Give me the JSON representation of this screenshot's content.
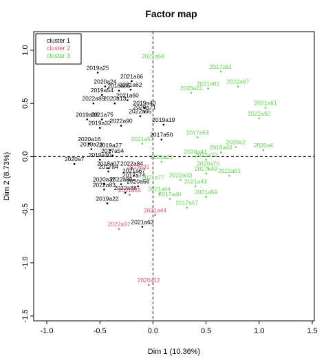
{
  "chart_data": {
    "type": "scatter",
    "title": "Factor map",
    "xlabel": "Dim 1 (10.36%)",
    "ylabel": "Dim 2 (8.73%)",
    "xlim": [
      -1.0,
      1.5
    ],
    "ylim": [
      -1.5,
      1.0
    ],
    "xticks": [
      "-1.0",
      "-0.5",
      "0.0",
      "0.5",
      "1.0",
      "1.5"
    ],
    "yticks": [
      "-1.5",
      "-1.0",
      "-0.5",
      "0.0",
      "0.5",
      "1.0"
    ],
    "legend_position": "top-left",
    "grid": false,
    "colors": {
      "cluster 1": "#000000",
      "cluster 2": "#DF536B",
      "cluster 3": "#61D04F"
    },
    "series": [
      {
        "name": "cluster 1",
        "points": [
          {
            "label": "2019a25",
            "x": -0.52,
            "y": 0.79
          },
          {
            "label": "2021a66",
            "x": -0.2,
            "y": 0.71
          },
          {
            "label": "2020a24",
            "x": -0.45,
            "y": 0.66
          },
          {
            "label": "2021a62",
            "x": -0.21,
            "y": 0.63
          },
          {
            "label": "2018a05",
            "x": -0.32,
            "y": 0.62
          },
          {
            "label": "2019a54",
            "x": -0.48,
            "y": 0.58
          },
          {
            "label": "2021a60",
            "x": -0.24,
            "y": 0.53
          },
          {
            "label": "2022a89",
            "x": -0.56,
            "y": 0.5
          },
          {
            "label": "2020a13",
            "x": -0.36,
            "y": 0.5
          },
          {
            "label": "2019a40",
            "x": -0.08,
            "y": 0.46
          },
          {
            "label": "2020a71",
            "x": -0.08,
            "y": 0.42
          },
          {
            "label": "2022a95",
            "x": -0.12,
            "y": 0.38
          },
          {
            "label": "2019a26",
            "x": -0.62,
            "y": 0.35
          },
          {
            "label": "2021a75",
            "x": -0.48,
            "y": 0.35
          },
          {
            "label": "2019a32",
            "x": -0.5,
            "y": 0.27
          },
          {
            "label": "2022a90",
            "x": -0.3,
            "y": 0.29
          },
          {
            "label": "2019a19",
            "x": 0.1,
            "y": 0.3
          },
          {
            "label": "2017a50",
            "x": 0.08,
            "y": 0.16
          },
          {
            "label": "2020a16",
            "x": -0.6,
            "y": 0.12
          },
          {
            "label": "2019a23",
            "x": -0.58,
            "y": 0.07
          },
          {
            "label": "2019a27",
            "x": -0.4,
            "y": 0.06
          },
          {
            "label": "2017a54",
            "x": -0.38,
            "y": 0.01
          },
          {
            "label": "2019a30",
            "x": -0.5,
            "y": -0.03
          },
          {
            "label": "2020a7",
            "x": -0.74,
            "y": -0.07
          },
          {
            "label": "2018a07",
            "x": -0.42,
            "y": -0.11
          },
          {
            "label": "2022a84",
            "x": -0.2,
            "y": -0.11
          },
          {
            "label": "2017a4",
            "x": -0.42,
            "y": -0.14
          },
          {
            "label": "2021a67",
            "x": -0.18,
            "y": -0.18
          },
          {
            "label": "2017a74",
            "x": -0.18,
            "y": -0.22
          },
          {
            "label": "2020a37",
            "x": -0.46,
            "y": -0.26
          },
          {
            "label": "2022a86",
            "x": -0.3,
            "y": -0.26
          },
          {
            "label": "2020a56",
            "x": -0.14,
            "y": -0.28
          },
          {
            "label": "2022a83",
            "x": -0.46,
            "y": -0.31
          },
          {
            "label": "2022a88",
            "x": -0.26,
            "y": -0.34
          },
          {
            "label": "2019a22",
            "x": -0.43,
            "y": -0.44
          },
          {
            "label": "2021a63",
            "x": -0.1,
            "y": -0.66
          }
        ]
      },
      {
        "name": "cluster 2",
        "points": [
          {
            "label": "2019a31",
            "x": -0.14,
            "y": -0.14
          },
          {
            "label": "2021a65",
            "x": -0.22,
            "y": -0.36
          },
          {
            "label": "2021a44",
            "x": 0.02,
            "y": -0.55
          },
          {
            "label": "2022a97",
            "x": -0.32,
            "y": -0.68
          },
          {
            "label": "2020a12",
            "x": -0.04,
            "y": -1.21
          }
        ]
      },
      {
        "name": "cluster 3",
        "points": [
          {
            "label": "2021a58",
            "x": 0.0,
            "y": 0.9
          },
          {
            "label": "2017a51",
            "x": 0.64,
            "y": 0.8
          },
          {
            "label": "2020a11",
            "x": 0.36,
            "y": 0.6
          },
          {
            "label": "2021a81",
            "x": 0.52,
            "y": 0.64
          },
          {
            "label": "2022a87",
            "x": 0.8,
            "y": 0.66
          },
          {
            "label": "2021a61",
            "x": 1.06,
            "y": 0.46
          },
          {
            "label": "2022a92",
            "x": 1.0,
            "y": 0.36
          },
          {
            "label": "2017a53",
            "x": 0.42,
            "y": 0.18
          },
          {
            "label": "2021a57",
            "x": -0.1,
            "y": 0.12
          },
          {
            "label": "2020a2",
            "x": 0.78,
            "y": 0.09
          },
          {
            "label": "2020a4",
            "x": 1.04,
            "y": 0.06
          },
          {
            "label": "2018a46",
            "x": 0.64,
            "y": 0.04
          },
          {
            "label": "2020a41",
            "x": 0.4,
            "y": 0.0
          },
          {
            "label": "2022a72",
            "x": 0.5,
            "y": -0.03
          },
          {
            "label": "2021a21",
            "x": 0.08,
            "y": -0.05
          },
          {
            "label": "2020a70",
            "x": 0.52,
            "y": -0.11
          },
          {
            "label": "2017a49",
            "x": 0.5,
            "y": -0.16
          },
          {
            "label": "2022a91",
            "x": 0.72,
            "y": -0.18
          },
          {
            "label": "2022a93",
            "x": 0.26,
            "y": -0.22
          },
          {
            "label": "2021a77",
            "x": 0.0,
            "y": -0.24
          },
          {
            "label": "2021a43",
            "x": 0.4,
            "y": -0.28
          },
          {
            "label": "2021a64",
            "x": 0.06,
            "y": -0.35
          },
          {
            "label": "2021a59",
            "x": 0.5,
            "y": -0.38
          },
          {
            "label": "2017a40",
            "x": 0.16,
            "y": -0.4
          },
          {
            "label": "2017a57",
            "x": 0.32,
            "y": -0.48
          }
        ]
      }
    ]
  }
}
